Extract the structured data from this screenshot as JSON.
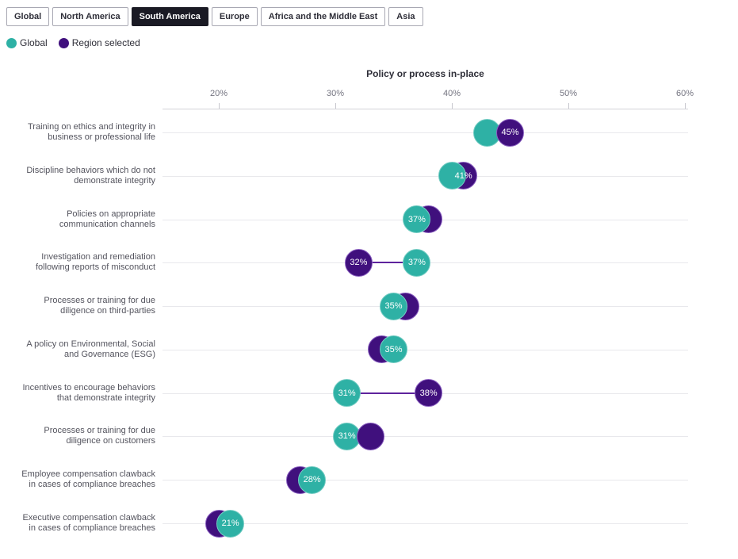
{
  "tabs": [
    {
      "label": "Global",
      "selected": false
    },
    {
      "label": "North America",
      "selected": false
    },
    {
      "label": "South America",
      "selected": true
    },
    {
      "label": "Europe",
      "selected": false
    },
    {
      "label": "Africa and the Middle East",
      "selected": false
    },
    {
      "label": "Asia",
      "selected": false
    }
  ],
  "legend": [
    {
      "label": "Global",
      "color": "#2eb1a5"
    },
    {
      "label": "Region selected",
      "color": "#40107d"
    }
  ],
  "chart_data": {
    "type": "dumbbell",
    "title": "Policy or process in-place",
    "x_tick_labels": [
      "20%",
      "30%",
      "40%",
      "50%",
      "60%"
    ],
    "x_tick_values": [
      20,
      30,
      40,
      50,
      60
    ],
    "x_range": [
      15,
      60
    ],
    "grid": "horizontal-row-lines",
    "legend_position": "top-left",
    "categories": [
      "Training on ethics and integrity in business or professional life",
      "Discipline behaviors which do not demonstrate integrity",
      "Policies on appropriate communication channels",
      "Investigation and remediation following reports of misconduct",
      "Processes or training for due diligence on third-parties",
      "A policy on Environmental, Social and Governance (ESG)",
      "Incentives to encourage behaviors that demonstrate integrity",
      "Processes or training for due diligence on customers",
      "Employee compensation clawback in cases of compliance breaches",
      "Executive compensation clawback in cases of compliance breaches"
    ],
    "series": [
      {
        "name": "Global",
        "color": "#2eb1a5",
        "values": [
          43,
          40,
          37,
          37,
          35,
          35,
          31,
          31,
          28,
          21
        ]
      },
      {
        "name": "Region selected",
        "color": "#40107d",
        "values": [
          45,
          41,
          38,
          32,
          36,
          34,
          38,
          33,
          27,
          20
        ]
      }
    ],
    "rows": [
      {
        "label_lines": [
          "Training on ethics and integrity in",
          "business or professional life"
        ],
        "global": 43,
        "region": 45,
        "front": "region",
        "labels": [
          "region"
        ],
        "connector": false
      },
      {
        "label_lines": [
          "Discipline behaviors which do not",
          "demonstrate integrity"
        ],
        "global": 40,
        "region": 41,
        "front": "global",
        "labels": [
          "region"
        ],
        "connector": false
      },
      {
        "label_lines": [
          "Policies on appropriate",
          "communication channels"
        ],
        "global": 37,
        "region": 38,
        "front": "global",
        "labels": [
          "global"
        ],
        "connector": false
      },
      {
        "label_lines": [
          "Investigation and remediation",
          "following reports of misconduct"
        ],
        "global": 37,
        "region": 32,
        "front": "global",
        "labels": [
          "global",
          "region"
        ],
        "connector": true
      },
      {
        "label_lines": [
          "Processes or training for due",
          "diligence on third-parties"
        ],
        "global": 35,
        "region": 36,
        "front": "global",
        "labels": [
          "global"
        ],
        "connector": false
      },
      {
        "label_lines": [
          "A policy on Environmental, Social",
          "and Governance (ESG)"
        ],
        "global": 35,
        "region": 34,
        "front": "global",
        "labels": [
          "global"
        ],
        "connector": false
      },
      {
        "label_lines": [
          "Incentives to encourage behaviors",
          "that demonstrate integrity"
        ],
        "global": 31,
        "region": 38,
        "front": "region",
        "labels": [
          "global",
          "region"
        ],
        "connector": true
      },
      {
        "label_lines": [
          "Processes or training for due",
          "diligence on customers"
        ],
        "global": 31,
        "region": 33,
        "front": "region",
        "labels": [
          "global"
        ],
        "connector": false
      },
      {
        "label_lines": [
          "Employee compensation clawback",
          "in cases of compliance breaches"
        ],
        "global": 28,
        "region": 27,
        "front": "global",
        "labels": [
          "global"
        ],
        "connector": false
      },
      {
        "label_lines": [
          "Executive compensation clawback",
          "in cases of compliance breaches"
        ],
        "global": 21,
        "region": 20,
        "front": "global",
        "labels": [
          "global"
        ],
        "connector": false
      }
    ]
  }
}
